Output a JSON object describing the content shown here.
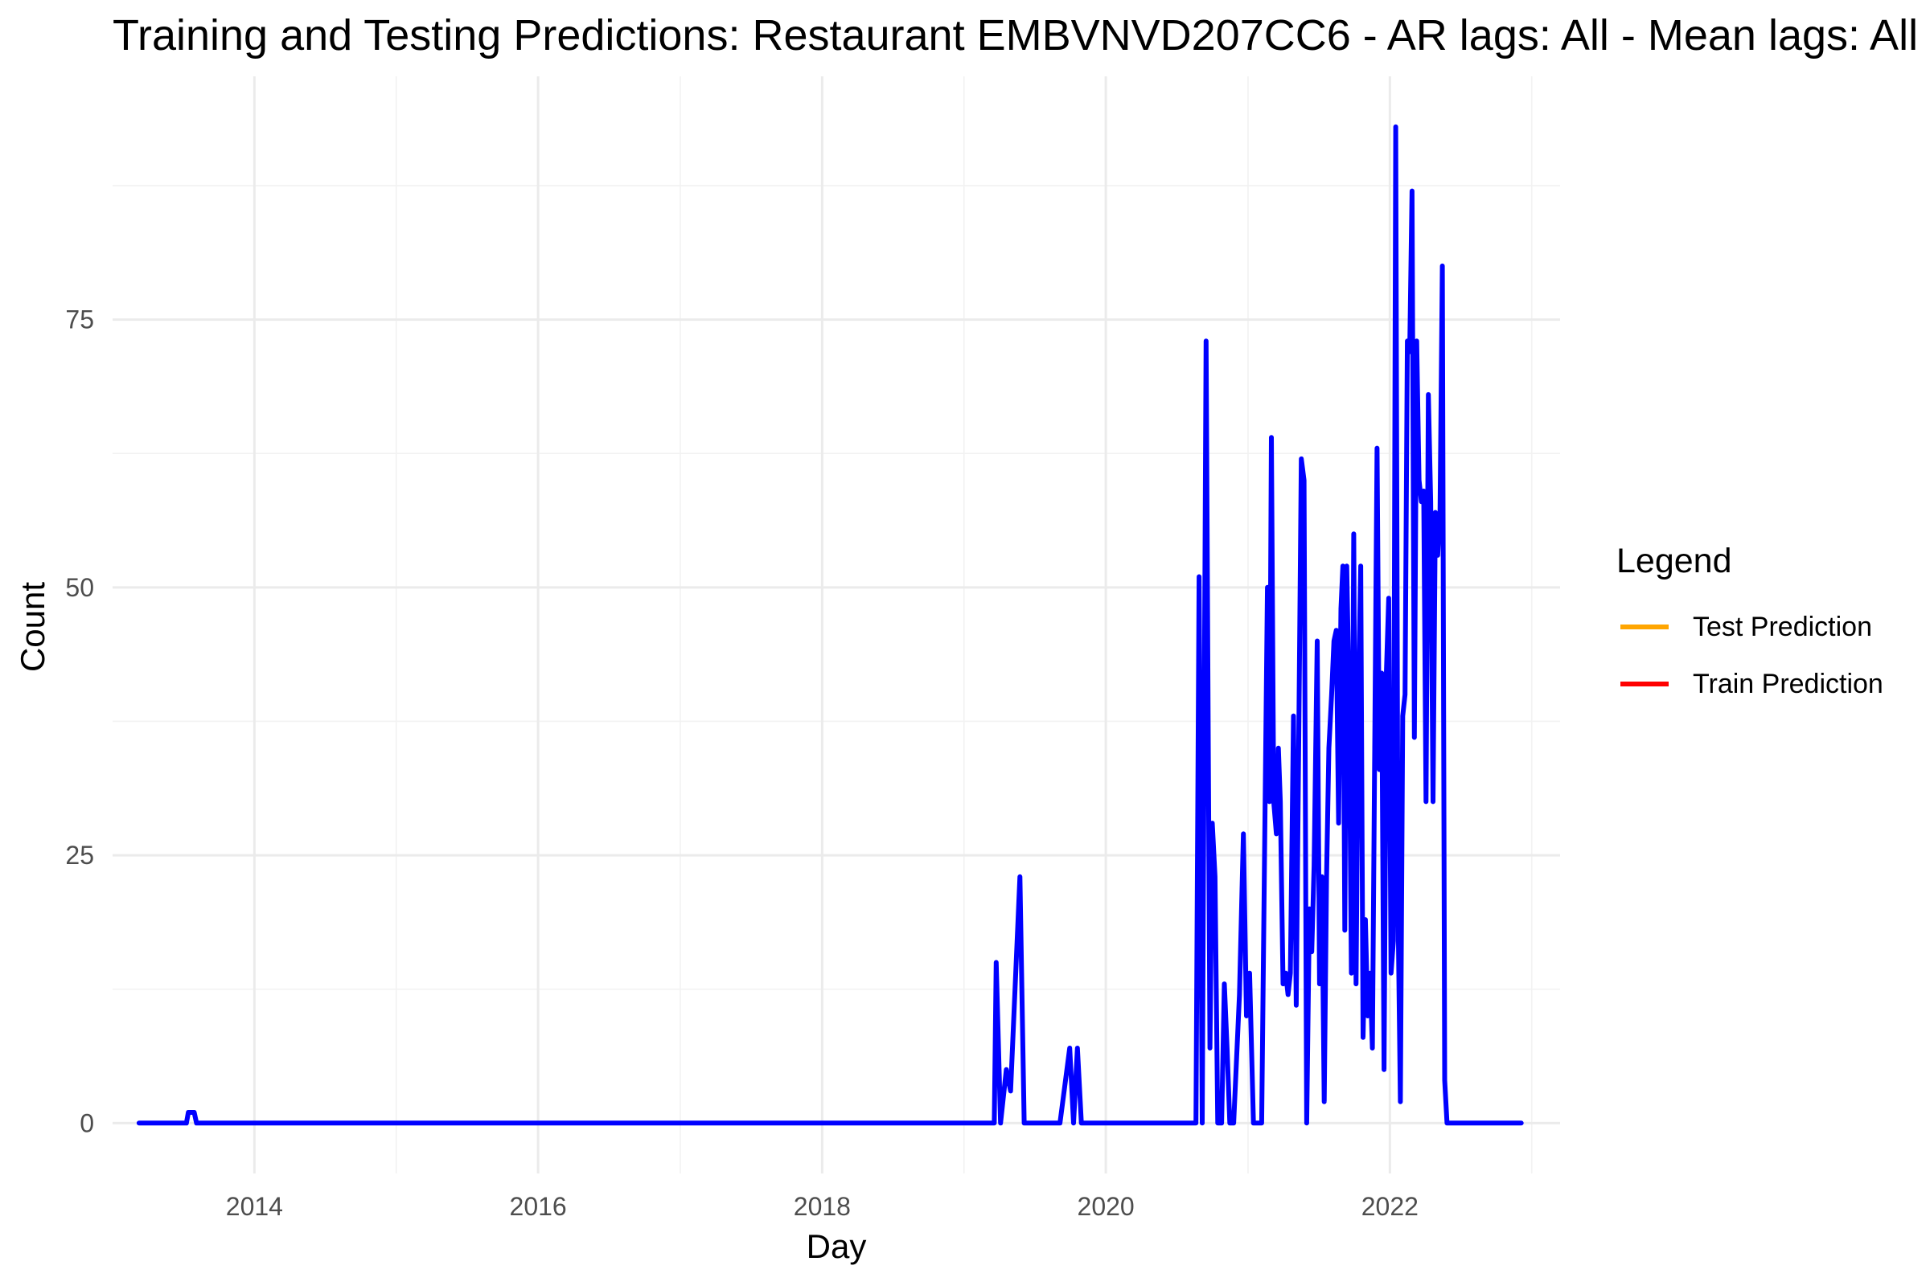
{
  "chart_data": {
    "type": "line",
    "title": "Training and Testing Predictions: Restaurant EMBVNVD207CC6 - AR lags: All - Mean lags: All",
    "xlabel": "Day",
    "ylabel": "Count",
    "xlim": [
      "2013-01-01",
      "2023-03-15"
    ],
    "ylim": [
      -4.7,
      97.7
    ],
    "x_ticks": [
      "2014",
      "2016",
      "2018",
      "2020",
      "2022"
    ],
    "x_tick_dates": [
      "2014-01-01",
      "2016-01-01",
      "2018-01-01",
      "2020-01-01",
      "2022-01-01"
    ],
    "y_ticks": [
      0,
      25,
      50,
      75
    ],
    "grid": true,
    "legend": {
      "title": "Legend",
      "position": "right",
      "entries": [
        {
          "label": "Test Prediction",
          "color": "#FFA500"
        },
        {
          "label": "Train Prediction",
          "color": "#FF0000"
        }
      ]
    },
    "series": [
      {
        "color": "#0000FF",
        "points": [
          [
            "2013-03-10",
            0
          ],
          [
            "2013-07-10",
            0
          ],
          [
            "2013-07-15",
            1
          ],
          [
            "2013-07-30",
            1
          ],
          [
            "2013-08-05",
            0
          ],
          [
            "2019-03-20",
            0
          ],
          [
            "2019-03-25",
            15
          ],
          [
            "2019-04-05",
            0
          ],
          [
            "2019-04-20",
            5
          ],
          [
            "2019-05-01",
            3
          ],
          [
            "2019-05-25",
            23
          ],
          [
            "2019-06-05",
            0
          ],
          [
            "2019-09-05",
            0
          ],
          [
            "2019-09-30",
            7
          ],
          [
            "2019-10-10",
            0
          ],
          [
            "2019-10-20",
            7
          ],
          [
            "2019-10-30",
            0
          ],
          [
            "2020-08-01",
            0
          ],
          [
            "2020-08-20",
            0
          ],
          [
            "2020-08-28",
            51
          ],
          [
            "2020-09-05",
            0
          ],
          [
            "2020-09-15",
            73
          ],
          [
            "2020-09-25",
            7
          ],
          [
            "2020-10-01",
            28
          ],
          [
            "2020-10-08",
            23
          ],
          [
            "2020-10-15",
            0
          ],
          [
            "2020-10-25",
            0
          ],
          [
            "2020-11-01",
            13
          ],
          [
            "2020-11-08",
            7
          ],
          [
            "2020-11-15",
            0
          ],
          [
            "2020-11-25",
            0
          ],
          [
            "2020-12-10",
            12
          ],
          [
            "2020-12-20",
            27
          ],
          [
            "2020-12-28",
            10
          ],
          [
            "2021-01-05",
            14
          ],
          [
            "2021-01-15",
            0
          ],
          [
            "2021-02-05",
            0
          ],
          [
            "2021-02-20",
            50
          ],
          [
            "2021-02-25",
            30
          ],
          [
            "2021-03-02",
            64
          ],
          [
            "2021-03-08",
            30
          ],
          [
            "2021-03-15",
            27
          ],
          [
            "2021-03-20",
            35
          ],
          [
            "2021-03-25",
            30
          ],
          [
            "2021-04-01",
            13
          ],
          [
            "2021-04-08",
            14
          ],
          [
            "2021-04-14",
            12
          ],
          [
            "2021-04-20",
            14
          ],
          [
            "2021-04-28",
            38
          ],
          [
            "2021-05-05",
            11
          ],
          [
            "2021-05-12",
            38
          ],
          [
            "2021-05-18",
            62
          ],
          [
            "2021-05-25",
            60
          ],
          [
            "2021-06-01",
            0
          ],
          [
            "2021-06-08",
            20
          ],
          [
            "2021-06-14",
            16
          ],
          [
            "2021-06-20",
            24
          ],
          [
            "2021-06-28",
            45
          ],
          [
            "2021-07-04",
            13
          ],
          [
            "2021-07-10",
            23
          ],
          [
            "2021-07-16",
            2
          ],
          [
            "2021-07-22",
            23
          ],
          [
            "2021-07-28",
            35
          ],
          [
            "2021-08-04",
            40
          ],
          [
            "2021-08-10",
            45
          ],
          [
            "2021-08-16",
            46
          ],
          [
            "2021-08-22",
            28
          ],
          [
            "2021-08-28",
            48
          ],
          [
            "2021-09-02",
            52
          ],
          [
            "2021-09-07",
            18
          ],
          [
            "2021-09-12",
            52
          ],
          [
            "2021-09-18",
            40
          ],
          [
            "2021-09-24",
            14
          ],
          [
            "2021-09-30",
            55
          ],
          [
            "2021-10-06",
            13
          ],
          [
            "2021-10-12",
            40
          ],
          [
            "2021-10-18",
            52
          ],
          [
            "2021-10-24",
            8
          ],
          [
            "2021-10-30",
            19
          ],
          [
            "2021-11-05",
            10
          ],
          [
            "2021-11-11",
            14
          ],
          [
            "2021-11-17",
            7
          ],
          [
            "2021-11-23",
            35
          ],
          [
            "2021-11-29",
            63
          ],
          [
            "2021-12-05",
            33
          ],
          [
            "2021-12-11",
            42
          ],
          [
            "2021-12-17",
            5
          ],
          [
            "2021-12-23",
            42
          ],
          [
            "2021-12-29",
            49
          ],
          [
            "2022-01-04",
            14
          ],
          [
            "2022-01-10",
            17
          ],
          [
            "2022-01-16",
            93
          ],
          [
            "2022-01-22",
            20
          ],
          [
            "2022-01-28",
            2
          ],
          [
            "2022-02-03",
            38
          ],
          [
            "2022-02-09",
            40
          ],
          [
            "2022-02-15",
            73
          ],
          [
            "2022-02-21",
            72
          ],
          [
            "2022-02-27",
            87
          ],
          [
            "2022-03-05",
            36
          ],
          [
            "2022-03-11",
            73
          ],
          [
            "2022-03-17",
            60
          ],
          [
            "2022-03-23",
            58
          ],
          [
            "2022-03-29",
            59
          ],
          [
            "2022-04-04",
            30
          ],
          [
            "2022-04-10",
            68
          ],
          [
            "2022-04-16",
            58
          ],
          [
            "2022-04-22",
            30
          ],
          [
            "2022-04-28",
            57
          ],
          [
            "2022-05-04",
            53
          ],
          [
            "2022-05-10",
            57
          ],
          [
            "2022-05-16",
            80
          ],
          [
            "2022-05-22",
            4
          ],
          [
            "2022-05-28",
            0
          ],
          [
            "2022-12-05",
            0
          ]
        ]
      }
    ]
  }
}
